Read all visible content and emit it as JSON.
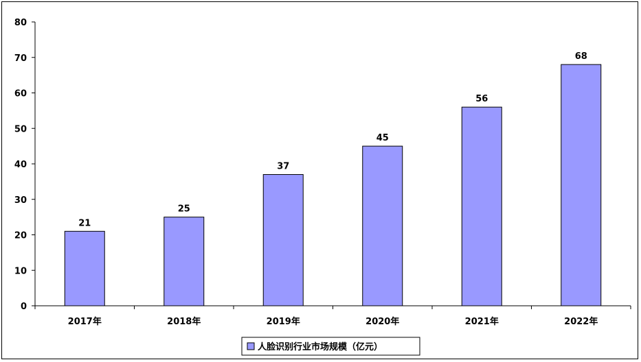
{
  "chart_data": {
    "type": "bar",
    "categories": [
      "2017年",
      "2018年",
      "2019年",
      "2020年",
      "2021年",
      "2022年"
    ],
    "series": [
      {
        "name": "人脸识别行业市场规模（亿元）",
        "values": [
          21,
          25,
          37,
          45,
          56,
          68
        ]
      }
    ],
    "ylim": [
      0,
      80
    ],
    "yticks": [
      0,
      10,
      20,
      30,
      40,
      50,
      60,
      70,
      80
    ],
    "grid": false,
    "legend_position": "bottom",
    "colors": {
      "bar_fill": "#9999ff",
      "bar_stroke": "#000000",
      "axis": "#000000"
    }
  }
}
